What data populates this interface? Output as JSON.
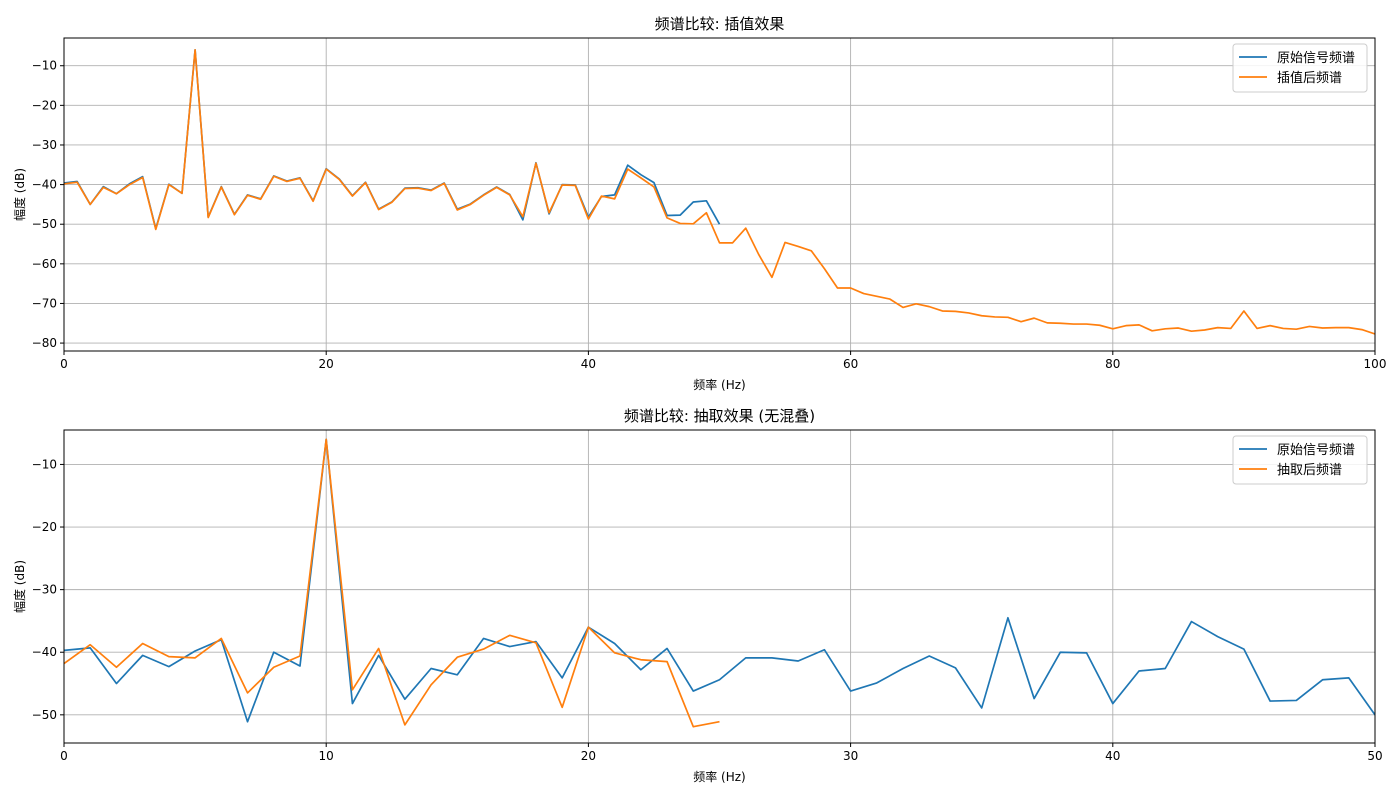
{
  "chart_data": [
    {
      "type": "line",
      "title": "频谱比较: 插值效果",
      "xlabel": "频率 (Hz)",
      "ylabel": "幅度 (dB)",
      "xlim": [
        0,
        100
      ],
      "ylim": [
        -82,
        -3
      ],
      "xticks": [
        0,
        20,
        40,
        60,
        80,
        100
      ],
      "yticks": [
        -80,
        -70,
        -60,
        -50,
        -40,
        -30,
        -20,
        -10
      ],
      "grid": true,
      "legend": "top-right",
      "series": [
        {
          "name": "原始信号频谱",
          "color": "#1f77b4",
          "x": [
            0,
            1,
            2,
            3,
            4,
            5,
            6,
            7,
            8,
            9,
            10,
            11,
            12,
            13,
            14,
            15,
            16,
            17,
            18,
            19,
            20,
            21,
            22,
            23,
            24,
            25,
            26,
            27,
            28,
            29,
            30,
            31,
            32,
            33,
            34,
            35,
            36,
            37,
            38,
            39,
            40,
            41,
            42,
            43,
            44,
            45,
            46,
            47,
            48,
            49,
            50
          ],
          "y": [
            -39.6,
            -39.2,
            -45,
            -40.5,
            -42.3,
            -39.8,
            -38,
            -51.1,
            -39.9,
            -42.2,
            -6,
            -48.2,
            -40.5,
            -47.5,
            -42.6,
            -43.6,
            -37.8,
            -39.1,
            -38.3,
            -44.1,
            -36,
            -38.6,
            -42.8,
            -39.4,
            -46.2,
            -44.4,
            -40.9,
            -40.8,
            -41.4,
            -39.6,
            -46.2,
            -44.9,
            -42.6,
            -40.6,
            -42.5,
            -48.9,
            -34.5,
            -47.4,
            -40,
            -40.1,
            -48.2,
            -43,
            -42.6,
            -35.1,
            -37.5,
            -39.5,
            -47.8,
            -47.7,
            -44.4,
            -44.1,
            -50
          ]
        },
        {
          "name": "插值后频谱",
          "color": "#ff7f0e",
          "x": [
            0,
            1,
            2,
            3,
            4,
            5,
            6,
            7,
            8,
            9,
            10,
            11,
            12,
            13,
            14,
            15,
            16,
            17,
            18,
            19,
            20,
            21,
            22,
            23,
            24,
            25,
            26,
            27,
            28,
            29,
            30,
            31,
            32,
            33,
            34,
            35,
            36,
            37,
            38,
            39,
            40,
            41,
            42,
            43,
            44,
            45,
            46,
            47,
            48,
            49,
            50,
            51,
            52,
            53,
            54,
            55,
            56,
            57,
            58,
            59,
            60,
            61,
            62,
            63,
            64,
            65,
            66,
            67,
            68,
            69,
            70,
            71,
            72,
            73,
            74,
            75,
            76,
            77,
            78,
            79,
            80,
            81,
            82,
            83,
            84,
            85,
            86,
            87,
            88,
            89,
            90,
            91,
            92,
            93,
            94,
            95,
            96,
            97,
            98,
            99,
            100
          ],
          "y": [
            -39.8,
            -39.4,
            -45,
            -40.7,
            -42.3,
            -40,
            -38.2,
            -51.3,
            -40,
            -42.2,
            -6,
            -48.3,
            -40.6,
            -47.6,
            -42.7,
            -43.7,
            -37.9,
            -39.2,
            -38.4,
            -44.2,
            -36.1,
            -38.7,
            -42.9,
            -39.5,
            -46.3,
            -44.5,
            -41,
            -40.9,
            -41.5,
            -39.7,
            -46.4,
            -45,
            -42.7,
            -40.7,
            -42.6,
            -48.1,
            -34.6,
            -47.1,
            -40.1,
            -40.2,
            -48.7,
            -42.9,
            -43.6,
            -36.1,
            -38.3,
            -40.6,
            -48.4,
            -49.8,
            -49.9,
            -47.1,
            -54.7,
            -54.7,
            -51,
            -57.7,
            -63.4,
            -54.6,
            -55.6,
            -56.7,
            -61.2,
            -66.1,
            -66.1,
            -67.5,
            -68.2,
            -68.9,
            -71,
            -70.1,
            -70.8,
            -71.9,
            -72,
            -72.4,
            -73.1,
            -73.4,
            -73.5,
            -74.6,
            -73.7,
            -74.9,
            -75,
            -75.2,
            -75.2,
            -75.5,
            -76.4,
            -75.6,
            -75.4,
            -76.9,
            -76.4,
            -76.2,
            -77,
            -76.7,
            -76.1,
            -76.3,
            -71.9,
            -76.3,
            -75.6,
            -76.3,
            -76.5,
            -75.8,
            -76.2,
            -76.1,
            -76.1,
            -76.6,
            -77.7
          ]
        }
      ]
    },
    {
      "type": "line",
      "title": "频谱比较: 抽取效果 (无混叠)",
      "xlabel": "频率 (Hz)",
      "ylabel": "幅度 (dB)",
      "xlim": [
        0,
        50
      ],
      "ylim": [
        -54.5,
        -4.5
      ],
      "xticks": [
        0,
        10,
        20,
        30,
        40,
        50
      ],
      "yticks": [
        -50,
        -40,
        -30,
        -20,
        -10
      ],
      "grid": true,
      "legend": "top-right",
      "series": [
        {
          "name": "原始信号频谱",
          "color": "#1f77b4",
          "x": [
            0,
            1,
            2,
            3,
            4,
            5,
            6,
            7,
            8,
            9,
            10,
            11,
            12,
            13,
            14,
            15,
            16,
            17,
            18,
            19,
            20,
            21,
            22,
            23,
            24,
            25,
            26,
            27,
            28,
            29,
            30,
            31,
            32,
            33,
            34,
            35,
            36,
            37,
            38,
            39,
            40,
            41,
            42,
            43,
            44,
            45,
            46,
            47,
            48,
            49,
            50
          ],
          "y": [
            -39.7,
            -39.3,
            -45,
            -40.5,
            -42.3,
            -39.8,
            -38,
            -51.1,
            -40,
            -42.2,
            -6,
            -48.2,
            -40.5,
            -47.5,
            -42.6,
            -43.6,
            -37.8,
            -39.1,
            -38.3,
            -44.1,
            -36,
            -38.6,
            -42.8,
            -39.4,
            -46.2,
            -44.4,
            -40.9,
            -40.9,
            -41.4,
            -39.6,
            -46.2,
            -44.9,
            -42.6,
            -40.6,
            -42.5,
            -48.9,
            -34.5,
            -47.4,
            -40,
            -40.1,
            -48.2,
            -43,
            -42.6,
            -35.1,
            -37.5,
            -39.5,
            -47.8,
            -47.7,
            -44.4,
            -44.1,
            -50
          ]
        },
        {
          "name": "抽取后频谱",
          "color": "#ff7f0e",
          "x": [
            0,
            1,
            2,
            3,
            4,
            5,
            6,
            7,
            8,
            9,
            10,
            11,
            12,
            13,
            14,
            15,
            16,
            17,
            18,
            19,
            20,
            21,
            22,
            23,
            24,
            25
          ],
          "y": [
            -41.8,
            -38.8,
            -42.4,
            -38.6,
            -40.7,
            -40.9,
            -37.8,
            -46.5,
            -42.4,
            -40.6,
            -6,
            -46,
            -39.4,
            -51.6,
            -45.2,
            -40.8,
            -39.5,
            -37.3,
            -38.5,
            -48.8,
            -36,
            -40.1,
            -41.2,
            -41.5,
            -51.9,
            -51.1
          ]
        }
      ]
    }
  ]
}
